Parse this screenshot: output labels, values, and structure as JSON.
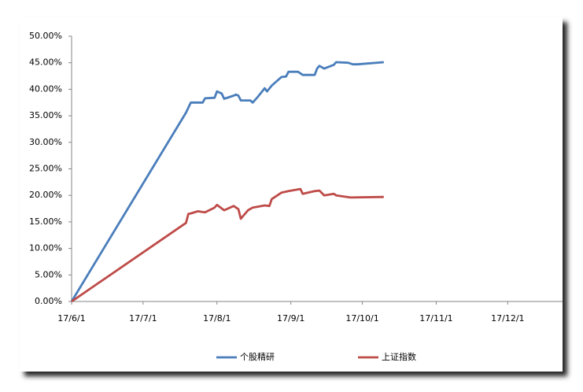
{
  "chart_data": {
    "type": "line",
    "xlim": [
      "2017-06-01",
      "2017-12-24"
    ],
    "xticks": [
      {
        "value": "2017-06-01",
        "label": "17/6/1"
      },
      {
        "value": "2017-07-01",
        "label": "17/7/1"
      },
      {
        "value": "2017-08-01",
        "label": "17/8/1"
      },
      {
        "value": "2017-09-01",
        "label": "17/9/1"
      },
      {
        "value": "2017-10-01",
        "label": "17/10/1"
      },
      {
        "value": "2017-11-01",
        "label": "17/11/1"
      },
      {
        "value": "2017-12-01",
        "label": "17/12/1"
      }
    ],
    "ylim": [
      0,
      50
    ],
    "yticks": [
      {
        "value": 0,
        "label": "0.00%"
      },
      {
        "value": 5,
        "label": "5.00%"
      },
      {
        "value": 10,
        "label": "10.00%"
      },
      {
        "value": 15,
        "label": "15.00%"
      },
      {
        "value": 20,
        "label": "20.00%"
      },
      {
        "value": 25,
        "label": "25.00%"
      },
      {
        "value": 30,
        "label": "30.00%"
      },
      {
        "value": 35,
        "label": "35.00%"
      },
      {
        "value": 40,
        "label": "40.00%"
      },
      {
        "value": 45,
        "label": "45.00%"
      },
      {
        "value": 50,
        "label": "50.00%"
      }
    ],
    "legend": "bottom",
    "series": [
      {
        "name": "个股精研",
        "color": "#4a7ebb",
        "x": [
          "2017-06-01",
          "2017-07-19",
          "2017-07-21",
          "2017-07-26",
          "2017-07-27",
          "2017-07-31",
          "2017-08-01",
          "2017-08-03",
          "2017-08-04",
          "2017-08-08",
          "2017-08-09",
          "2017-08-10",
          "2017-08-11",
          "2017-08-15",
          "2017-08-16",
          "2017-08-18",
          "2017-08-21",
          "2017-08-22",
          "2017-08-24",
          "2017-08-25",
          "2017-08-28",
          "2017-08-30",
          "2017-08-31",
          "2017-09-04",
          "2017-09-06",
          "2017-09-11",
          "2017-09-12",
          "2017-09-13",
          "2017-09-15",
          "2017-09-19",
          "2017-09-20",
          "2017-09-25",
          "2017-09-27",
          "2017-09-29",
          "2017-10-10"
        ],
        "values": [
          0,
          35.6,
          37.5,
          37.5,
          38.3,
          38.4,
          39.6,
          39.2,
          38.2,
          38.8,
          39.0,
          38.8,
          37.9,
          37.9,
          37.5,
          38.5,
          40.2,
          39.6,
          40.7,
          41.1,
          42.3,
          42.4,
          43.3,
          43.3,
          42.7,
          42.7,
          43.9,
          44.4,
          43.9,
          44.6,
          45.1,
          45.0,
          44.7,
          44.7,
          45.1
        ]
      },
      {
        "name": "上证指数",
        "color": "#be4b48",
        "x": [
          "2017-06-01",
          "2017-07-19",
          "2017-07-20",
          "2017-07-21",
          "2017-07-24",
          "2017-07-27",
          "2017-07-31",
          "2017-08-01",
          "2017-08-04",
          "2017-08-08",
          "2017-08-10",
          "2017-08-11",
          "2017-08-14",
          "2017-08-16",
          "2017-08-21",
          "2017-08-23",
          "2017-08-24",
          "2017-08-28",
          "2017-08-31",
          "2017-09-05",
          "2017-09-06",
          "2017-09-11",
          "2017-09-13",
          "2017-09-15",
          "2017-09-19",
          "2017-09-20",
          "2017-09-26",
          "2017-10-10"
        ],
        "values": [
          0,
          14.8,
          16.5,
          16.6,
          17.0,
          16.8,
          17.7,
          18.2,
          17.2,
          18.0,
          17.4,
          15.6,
          17.2,
          17.7,
          18.1,
          18.0,
          19.3,
          20.5,
          20.8,
          21.2,
          20.3,
          20.8,
          20.9,
          20.0,
          20.3,
          20.0,
          19.6,
          19.7
        ]
      }
    ]
  }
}
